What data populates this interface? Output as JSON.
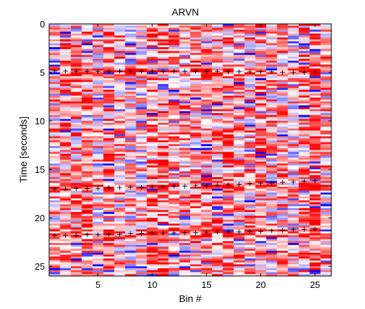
{
  "chart_data": {
    "type": "heatmap",
    "title": "ARVN",
    "xlabel": "Bin #",
    "ylabel": "Time [seconds]",
    "xlim": [
      0.5,
      26.5
    ],
    "ylim": [
      26,
      0
    ],
    "y_reversed": true,
    "xticks": [
      5,
      10,
      15,
      20,
      25
    ],
    "yticks": [
      0,
      5,
      10,
      15,
      20,
      25
    ],
    "colormap": {
      "low": "#0000ff",
      "mid": "#ffffff",
      "high": "#ff0000"
    },
    "bins": 26,
    "rows": 130,
    "seed": 7,
    "marker_symbol": "+",
    "marker_color": "#000000",
    "onset_tracks": [
      {
        "x": [
          1,
          2,
          3,
          4,
          5,
          6,
          7,
          8,
          9,
          10,
          11,
          12,
          13,
          14,
          15,
          16,
          17,
          18,
          19,
          20,
          21,
          22,
          23,
          24,
          25
        ],
        "y": [
          4.8,
          4.8,
          4.85,
          4.85,
          4.85,
          4.85,
          4.85,
          4.85,
          4.85,
          4.85,
          4.85,
          4.85,
          4.85,
          4.85,
          4.85,
          4.85,
          4.9,
          4.9,
          4.9,
          4.9,
          4.9,
          4.95,
          4.95,
          4.95,
          4.95
        ]
      },
      {
        "x": [
          1,
          2,
          3,
          4,
          5,
          6,
          7,
          8,
          9,
          10,
          11,
          12,
          13,
          14,
          15,
          16,
          17,
          18,
          19,
          20,
          21,
          22,
          23,
          24,
          25
        ],
        "y": [
          17.0,
          17.0,
          16.95,
          16.95,
          16.9,
          16.85,
          16.85,
          16.8,
          16.8,
          16.75,
          16.75,
          16.7,
          16.7,
          16.65,
          16.65,
          16.6,
          16.55,
          16.5,
          16.45,
          16.4,
          16.35,
          16.3,
          16.25,
          16.2,
          16.15
        ]
      },
      {
        "x": [
          1,
          2,
          3,
          4,
          5,
          6,
          7,
          8,
          9,
          10,
          11,
          12,
          13,
          14,
          15,
          16,
          17,
          18,
          19,
          20,
          21,
          22,
          23,
          24,
          25
        ],
        "y": [
          21.8,
          21.75,
          21.75,
          21.7,
          21.7,
          21.65,
          21.65,
          21.6,
          21.6,
          21.55,
          21.55,
          21.5,
          21.5,
          21.5,
          21.45,
          21.45,
          21.4,
          21.4,
          21.35,
          21.35,
          21.3,
          21.25,
          21.2,
          21.15,
          21.1
        ]
      }
    ]
  }
}
